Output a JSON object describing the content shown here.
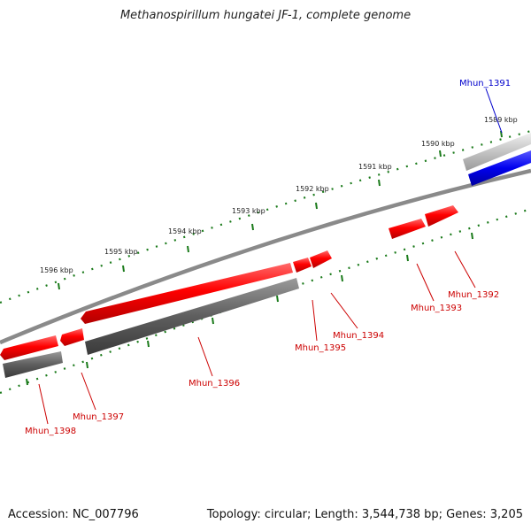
{
  "title": "Methanospirillum hungatei JF-1, complete genome",
  "footer": {
    "accession": "Accession: NC_007796",
    "summary": "Topology: circular; Length: 3,544,738 bp; Genes: 3,205"
  },
  "colors": {
    "feature_red": "#e8000b",
    "feature_blue": "#0000e0",
    "feature_grey": "#666666",
    "backbone": "#8a8a8a",
    "tick_green": "#1a7a1a",
    "label_red": "#cc0000",
    "label_blue": "#0000cc"
  },
  "ruler": {
    "ticks": [
      {
        "label": "1589 kbp"
      },
      {
        "label": "1590 kbp"
      },
      {
        "label": "1591 kbp"
      },
      {
        "label": "1592 kbp"
      },
      {
        "label": "1593 kbp"
      },
      {
        "label": "1594 kbp"
      },
      {
        "label": "1595 kbp"
      },
      {
        "label": "1596 kbp"
      }
    ]
  },
  "genes": [
    {
      "name": "Mhun_1391",
      "color": "blue"
    },
    {
      "name": "Mhun_1392",
      "color": "red"
    },
    {
      "name": "Mhun_1393",
      "color": "red"
    },
    {
      "name": "Mhun_1394",
      "color": "red"
    },
    {
      "name": "Mhun_1395",
      "color": "red"
    },
    {
      "name": "Mhun_1396",
      "color": "red"
    },
    {
      "name": "Mhun_1397",
      "color": "red"
    },
    {
      "name": "Mhun_1398",
      "color": "red"
    }
  ]
}
